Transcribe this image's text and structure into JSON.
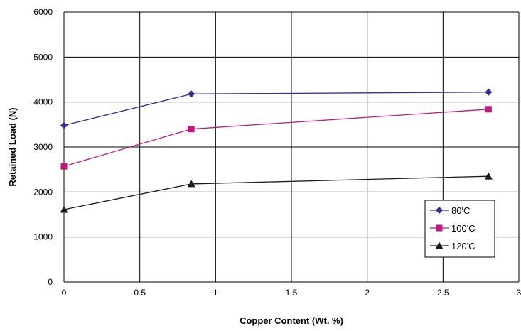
{
  "chart_data": {
    "type": "line",
    "xlabel": "Copper Content (Wt. %)",
    "ylabel": "Retained Load (N)",
    "xlim": [
      0,
      3
    ],
    "ylim": [
      0,
      6000
    ],
    "x_ticks": [
      "0",
      "0.5",
      "1",
      "1.5",
      "2",
      "2.5",
      "3"
    ],
    "y_ticks": [
      "0",
      "1000",
      "2000",
      "3000",
      "4000",
      "5000",
      "6000"
    ],
    "grid": true,
    "legend_position": "bottom-right",
    "series": [
      {
        "name": "80'C",
        "color": "#2e3192",
        "marker": "diamond",
        "x": [
          0,
          0.84,
          2.8
        ],
        "y": [
          3480,
          4180,
          4220
        ]
      },
      {
        "name": "100'C",
        "color": "#c2177e",
        "marker": "square",
        "x": [
          0,
          0.84,
          2.8
        ],
        "y": [
          2570,
          3400,
          3840
        ]
      },
      {
        "name": "120'C",
        "color": "#1a1a1a",
        "marker": "triangle",
        "x": [
          0,
          0.84,
          2.8
        ],
        "y": [
          1610,
          2180,
          2350
        ]
      }
    ]
  }
}
